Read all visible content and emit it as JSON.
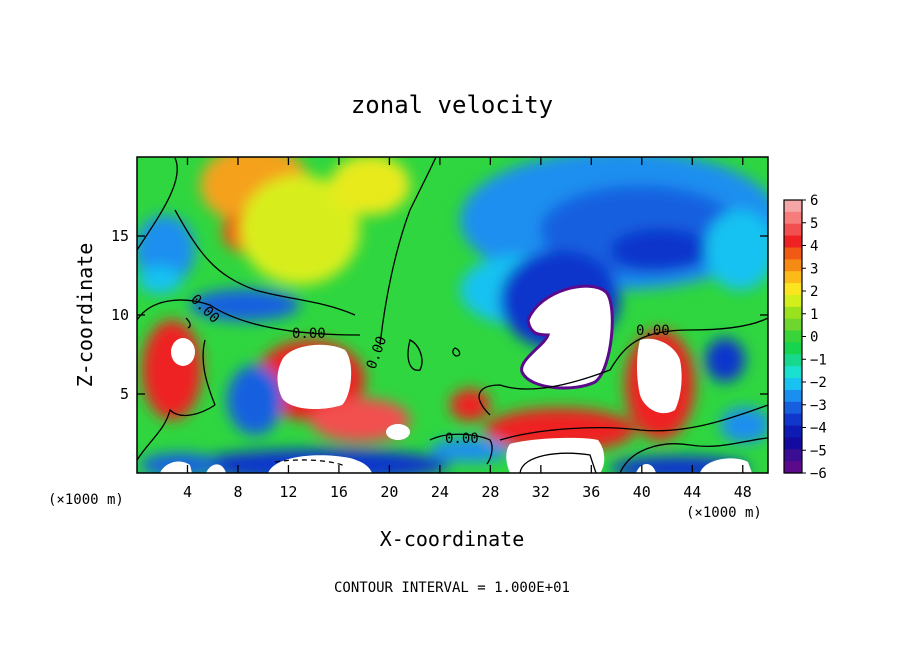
{
  "chart_data": {
    "type": "heatmap",
    "title": "zonal velocity",
    "xlabel": "X-coordinate",
    "ylabel": "Z-coordinate",
    "x_unit": "(×1000 m)",
    "xlim": [
      0,
      50
    ],
    "ylim": [
      0,
      20
    ],
    "x_ticks": [
      4,
      8,
      12,
      16,
      20,
      24,
      28,
      32,
      36,
      40,
      44,
      48
    ],
    "y_ticks": [
      5,
      10,
      15
    ],
    "colorbar": {
      "min": -6,
      "max": 6,
      "tick_labels": [
        "6",
        "5",
        "4",
        "3",
        "2",
        "1",
        "0",
        "−1",
        "−2",
        "−3",
        "−4",
        "−5",
        "−6"
      ],
      "colors": [
        "#f4a6a6",
        "#f77c7c",
        "#f25050",
        "#ee2222",
        "#f05a14",
        "#f58a14",
        "#fdbb1a",
        "#fbe51e",
        "#d2ef1c",
        "#9be21e",
        "#6ed62e",
        "#39d33a",
        "#16d44e",
        "#17d88c",
        "#1ae0cf",
        "#19c2f1",
        "#1a8ff0",
        "#1660e0",
        "#1136cc",
        "#0d1ab4",
        "#140aa0",
        "#3a0d94",
        "#5a0a8a"
      ]
    },
    "contour_labels": [
      "0.00",
      "0.00",
      "0.00",
      "0.00",
      "0.00"
    ],
    "footer": "CONTOUR INTERVAL = 1.000E+01"
  }
}
